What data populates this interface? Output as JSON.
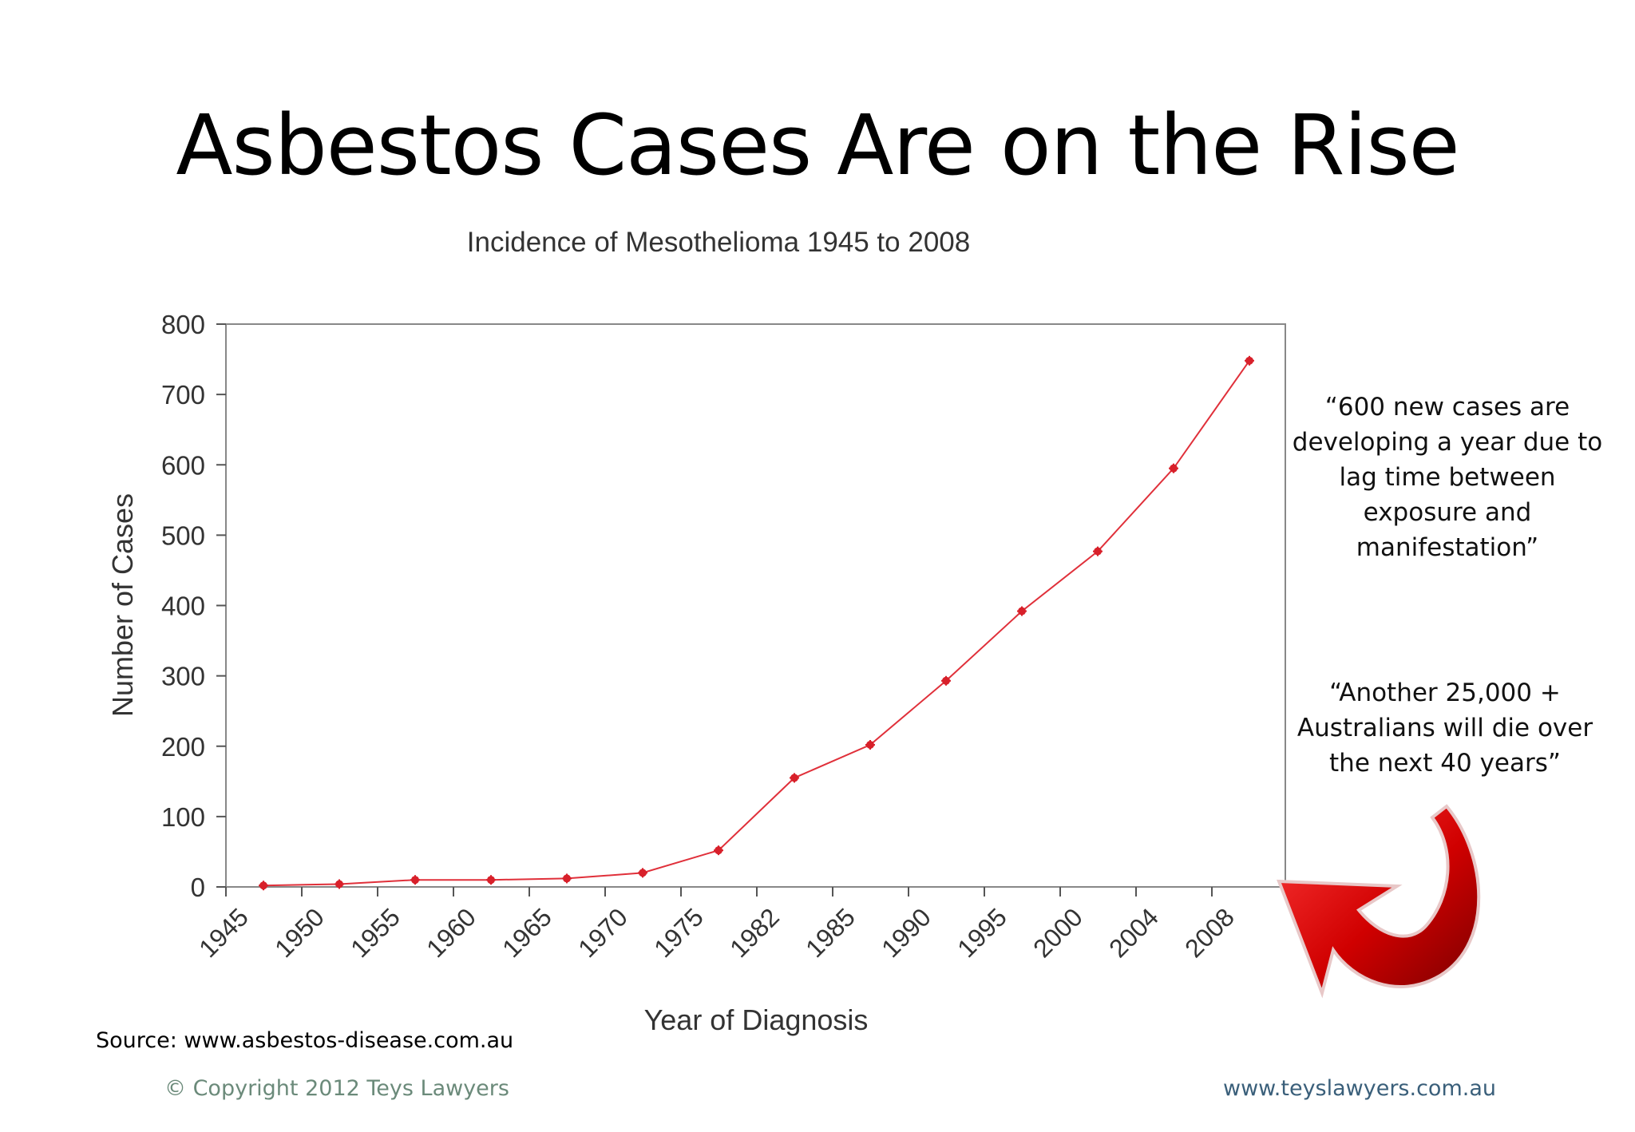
{
  "slide": {
    "title": "Asbestos Cases Are on the Rise",
    "quote_1": "“600 new cases are developing a year due to lag time between exposure and manifestation”",
    "quote_2": "“Another 25,000  + Australians will die over the next 40 years”",
    "source": "Source: www.asbestos-disease.com.au",
    "copyright": "© Copyright 2012 Teys Lawyers",
    "website": "www.teyslawyers.com.au",
    "arrow_icon": "curved-arrow-icon",
    "arrow_color": "#cc0000"
  },
  "chart_data": {
    "type": "line",
    "title": "Incidence of Mesothelioma 1945 to 2008",
    "xlabel": "Year of Diagnosis",
    "ylabel": "Number of Cases",
    "categories": [
      "1945",
      "1950",
      "1955",
      "1960",
      "1965",
      "1970",
      "1975",
      "1982",
      "1985",
      "1990",
      "1995",
      "2000",
      "2004",
      "2008"
    ],
    "series": [
      {
        "values": [
          2,
          4,
          10,
          10,
          12,
          20,
          52,
          155,
          202,
          293,
          392,
          477,
          595,
          748
        ],
        "color": "#e0303a"
      }
    ],
    "yticks": [
      0,
      100,
      200,
      300,
      400,
      500,
      600,
      700,
      800
    ],
    "ylim": [
      0,
      800
    ],
    "grid": false,
    "legend": "none"
  }
}
